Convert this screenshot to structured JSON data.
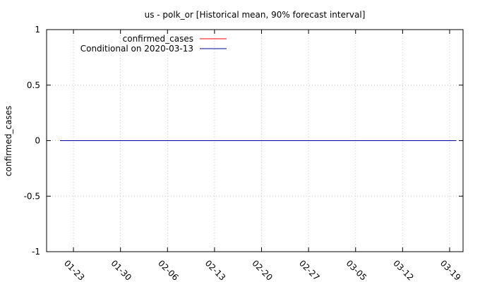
{
  "chart_data": {
    "type": "line",
    "title": "us - polk_or [Historical mean, 90% forecast interval]",
    "xlabel": "",
    "ylabel": "confirmed_cases",
    "ylim": [
      -1,
      1
    ],
    "xlim": [
      "2020-01-19",
      "2020-03-21"
    ],
    "y_ticks": [
      {
        "value": -1,
        "label": "-1"
      },
      {
        "value": -0.5,
        "label": "-0.5"
      },
      {
        "value": 0,
        "label": "0"
      },
      {
        "value": 0.5,
        "label": "0.5"
      },
      {
        "value": 1,
        "label": "1"
      }
    ],
    "x_ticks": [
      {
        "date": "2020-01-23",
        "label": "01-23"
      },
      {
        "date": "2020-01-30",
        "label": "01-30"
      },
      {
        "date": "2020-02-06",
        "label": "02-06"
      },
      {
        "date": "2020-02-13",
        "label": "02-13"
      },
      {
        "date": "2020-02-20",
        "label": "02-20"
      },
      {
        "date": "2020-02-27",
        "label": "02-27"
      },
      {
        "date": "2020-03-05",
        "label": "03-05"
      },
      {
        "date": "2020-03-12",
        "label": "03-12"
      },
      {
        "date": "2020-03-19",
        "label": "03-19"
      }
    ],
    "grid": true,
    "legend_position": "top-left",
    "series": [
      {
        "name": "confirmed_cases",
        "color": "#ff0000",
        "x": [
          "2020-01-21",
          "2020-03-13"
        ],
        "y": [
          0,
          0
        ]
      },
      {
        "name": "Conditional on 2020-03-13",
        "color": "#0000a0",
        "x": [
          "2020-01-21",
          "2020-03-20"
        ],
        "y": [
          0,
          0
        ]
      }
    ]
  }
}
